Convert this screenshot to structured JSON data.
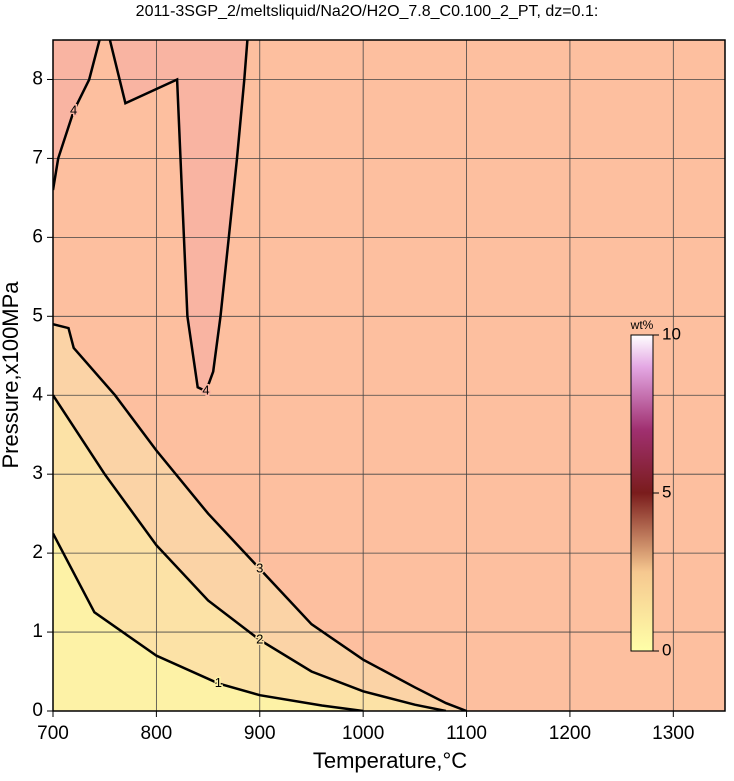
{
  "chart_data": {
    "type": "contour",
    "title": "2011-3SGP_2/meltsliquid/Na2O/H2O_7.8_C0.100_2_PT, dz=0.1:",
    "xlabel": "Temperature,°C",
    "ylabel": "Pressure,x100MPa",
    "xlim": [
      700,
      1350
    ],
    "ylim": [
      0,
      8.5
    ],
    "xticks": [
      700,
      800,
      900,
      1000,
      1100,
      1200,
      1300
    ],
    "yticks": [
      0,
      1,
      2,
      3,
      4,
      5,
      6,
      7,
      8
    ],
    "grid": true,
    "contours": [
      {
        "level": 3,
        "color": "#fbd3a6",
        "x": [
          700,
          715,
          720,
          760,
          800,
          850,
          900,
          950,
          1000,
          1050,
          1080,
          1100
        ],
        "y": [
          4.9,
          4.85,
          4.6,
          4.0,
          3.3,
          2.5,
          1.8,
          1.1,
          0.65,
          0.3,
          0.1,
          0
        ]
      },
      {
        "level": 2,
        "color": "#fce2a6",
        "x": [
          700,
          750,
          800,
          850,
          900,
          950,
          1000,
          1050,
          1080
        ],
        "y": [
          4.0,
          3.0,
          2.1,
          1.4,
          0.9,
          0.5,
          0.25,
          0.08,
          0
        ]
      },
      {
        "level": 1,
        "color": "#fdf2a6",
        "x": [
          700,
          740,
          800,
          860,
          900,
          960,
          1000
        ],
        "y": [
          2.25,
          1.25,
          0.7,
          0.35,
          0.2,
          0.07,
          0
        ]
      },
      {
        "level": 4,
        "color": "#f9b4a2",
        "x": [
          755,
          770,
          820,
          825,
          830,
          840,
          848,
          855,
          862,
          870,
          878,
          885,
          888
        ],
        "y": [
          8.5,
          7.7,
          8.0,
          6.5,
          5.0,
          4.1,
          4.05,
          4.3,
          5.0,
          6.0,
          7.0,
          8.0,
          8.5
        ]
      },
      {
        "level": 4,
        "color": "#f9b4a2",
        "x": [
          745,
          735,
          720,
          705,
          700
        ],
        "y": [
          8.5,
          8.0,
          7.6,
          7.0,
          6.6
        ]
      }
    ],
    "colorbar": {
      "label": "wt%",
      "lim": [
        0,
        10
      ],
      "ticks": [
        0,
        5,
        10
      ]
    }
  }
}
